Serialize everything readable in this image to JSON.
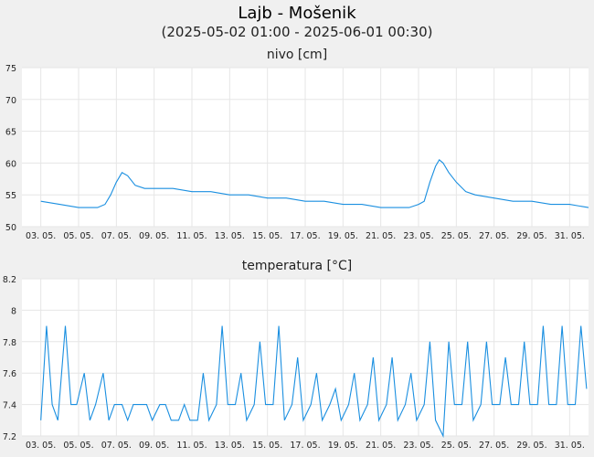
{
  "title": "Lajb - Mošenik",
  "subtitle": "(2025-05-02 01:00 - 2025-06-01 00:30)",
  "colors": {
    "line": "#1a8fe0",
    "background": "#f0f0f0",
    "plot": "#ffffff",
    "grid": "#e6e6e6"
  },
  "chart_data": [
    {
      "type": "line",
      "title": "nivo [cm]",
      "ylim": [
        50,
        75
      ],
      "yticks": [
        "75",
        "70",
        "65",
        "60",
        "55",
        "50"
      ],
      "xticks": [
        "03. 05.",
        "05. 05.",
        "07. 05.",
        "09. 05.",
        "11. 05.",
        "13. 05.",
        "15. 05.",
        "17. 05.",
        "19. 05.",
        "21. 05.",
        "23. 05.",
        "25. 05.",
        "27. 05.",
        "29. 05.",
        "31. 05."
      ],
      "grid": true,
      "series": [
        {
          "x": [
            1.0,
            2.0,
            3.0,
            3.5,
            4.0,
            4.4,
            4.7,
            5.0,
            5.3,
            5.6,
            6.0,
            6.5,
            7.0,
            8.0,
            9.0,
            10.0,
            11.0,
            12.0,
            13.0,
            14.0,
            15.0,
            16.0,
            17.0,
            18.0,
            19.0,
            20.0,
            20.5,
            21.0,
            21.3,
            21.6,
            21.9,
            22.1,
            22.3,
            22.6,
            23.0,
            23.5,
            24.0,
            25.0,
            26.0,
            27.0,
            28.0,
            29.0,
            30.0
          ],
          "y": [
            54.0,
            53.5,
            53.0,
            53.0,
            53.0,
            53.5,
            55.0,
            57.0,
            58.5,
            58.0,
            56.5,
            56.0,
            56.0,
            56.0,
            55.5,
            55.5,
            55.0,
            55.0,
            54.5,
            54.5,
            54.0,
            54.0,
            53.5,
            53.5,
            53.0,
            53.0,
            53.0,
            53.5,
            54.0,
            57.0,
            59.5,
            60.5,
            60.0,
            58.5,
            57.0,
            55.5,
            55.0,
            54.5,
            54.0,
            54.0,
            53.5,
            53.5,
            53.0
          ]
        }
      ]
    },
    {
      "type": "line",
      "title": "temperatura [°C]",
      "ylim": [
        7.2,
        8.2
      ],
      "yticks": [
        "8.2",
        "8",
        "7.8",
        "7.6",
        "7.4",
        "7.2"
      ],
      "xticks": [
        "03. 05.",
        "05. 05.",
        "07. 05.",
        "09. 05.",
        "11. 05.",
        "13. 05.",
        "15. 05.",
        "17. 05.",
        "19. 05.",
        "21. 05.",
        "23. 05.",
        "25. 05.",
        "27. 05.",
        "29. 05.",
        "31. 05."
      ],
      "grid": true,
      "series": [
        {
          "x": [
            1.0,
            1.3,
            1.6,
            1.9,
            2.3,
            2.6,
            2.9,
            3.3,
            3.6,
            3.9,
            4.3,
            4.6,
            4.9,
            5.3,
            5.6,
            5.9,
            6.3,
            6.6,
            6.9,
            7.3,
            7.6,
            7.9,
            8.3,
            8.6,
            8.9,
            9.3,
            9.6,
            9.9,
            10.3,
            10.6,
            10.9,
            11.3,
            11.6,
            11.9,
            12.3,
            12.6,
            12.9,
            13.3,
            13.6,
            13.9,
            14.3,
            14.6,
            14.9,
            15.3,
            15.6,
            15.9,
            16.3,
            16.6,
            16.9,
            17.3,
            17.6,
            17.9,
            18.3,
            18.6,
            18.9,
            19.3,
            19.6,
            19.9,
            20.3,
            20.6,
            20.9,
            21.3,
            21.6,
            21.9,
            22.3,
            22.6,
            22.9,
            23.3,
            23.6,
            23.9,
            24.3,
            24.6,
            24.9,
            25.3,
            25.6,
            25.9,
            26.3,
            26.6,
            26.9,
            27.3,
            27.6,
            27.9,
            28.3,
            28.6,
            28.9,
            29.3,
            29.6,
            29.9
          ],
          "y": [
            7.3,
            7.9,
            7.4,
            7.3,
            7.9,
            7.4,
            7.4,
            7.6,
            7.3,
            7.4,
            7.6,
            7.3,
            7.4,
            7.4,
            7.3,
            7.4,
            7.4,
            7.4,
            7.3,
            7.4,
            7.4,
            7.3,
            7.3,
            7.4,
            7.3,
            7.3,
            7.6,
            7.3,
            7.4,
            7.9,
            7.4,
            7.4,
            7.6,
            7.3,
            7.4,
            7.8,
            7.4,
            7.4,
            7.9,
            7.3,
            7.4,
            7.7,
            7.3,
            7.4,
            7.6,
            7.3,
            7.4,
            7.5,
            7.3,
            7.4,
            7.6,
            7.3,
            7.4,
            7.7,
            7.3,
            7.4,
            7.7,
            7.3,
            7.4,
            7.6,
            7.3,
            7.4,
            7.8,
            7.3,
            7.2,
            7.8,
            7.4,
            7.4,
            7.8,
            7.3,
            7.4,
            7.8,
            7.4,
            7.4,
            7.7,
            7.4,
            7.4,
            7.8,
            7.4,
            7.4,
            7.9,
            7.4,
            7.4,
            7.9,
            7.4,
            7.4,
            7.9,
            7.5
          ]
        }
      ]
    }
  ]
}
